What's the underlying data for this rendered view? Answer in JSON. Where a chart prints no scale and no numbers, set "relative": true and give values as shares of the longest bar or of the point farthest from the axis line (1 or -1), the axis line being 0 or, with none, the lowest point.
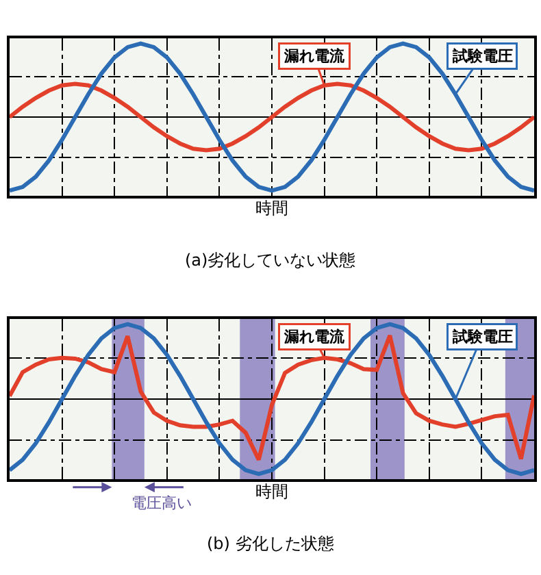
{
  "chart_data": [
    {
      "type": "line",
      "relative": true,
      "title": "(a)劣化していない状態",
      "xlabel": "時間",
      "grid": true,
      "tick_labels": false,
      "categories": [
        null,
        null,
        null,
        null,
        null,
        null,
        null,
        null,
        null,
        null,
        null,
        null,
        null,
        null,
        null,
        null,
        null,
        null,
        null,
        null,
        null,
        null,
        null,
        null,
        null,
        null,
        null,
        null,
        null,
        null,
        null,
        null,
        null,
        null,
        null,
        null,
        null,
        null,
        null,
        null,
        null
      ],
      "series": [
        {
          "name": "漏れ電流",
          "color": "#e2402a",
          "values": [
            0,
            0.14,
            0.26,
            0.36,
            0.43,
            0.45,
            0.43,
            0.36,
            0.26,
            0.14,
            0,
            -0.14,
            -0.26,
            -0.36,
            -0.43,
            -0.45,
            -0.43,
            -0.36,
            -0.26,
            -0.14,
            0,
            0.14,
            0.26,
            0.36,
            0.43,
            0.45,
            0.43,
            0.36,
            0.26,
            0.14,
            0,
            -0.14,
            -0.26,
            -0.36,
            -0.43,
            -0.45,
            -0.43,
            -0.36,
            -0.26,
            -0.14,
            0
          ]
        },
        {
          "name": "試験電圧",
          "color": "#2b6cb4",
          "values": [
            -1,
            -0.95,
            -0.81,
            -0.59,
            -0.31,
            0,
            0.31,
            0.59,
            0.81,
            0.95,
            1,
            0.95,
            0.81,
            0.59,
            0.31,
            0,
            -0.31,
            -0.59,
            -0.81,
            -0.95,
            -1,
            -0.95,
            -0.81,
            -0.59,
            -0.31,
            0,
            0.31,
            0.59,
            0.81,
            0.95,
            1,
            0.95,
            0.81,
            0.59,
            0.31,
            0,
            -0.31,
            -0.59,
            -0.81,
            -0.95,
            -1
          ]
        }
      ]
    },
    {
      "type": "line",
      "relative": true,
      "title": "(b) 劣化した状態",
      "xlabel": "時間",
      "grid": true,
      "tick_labels": false,
      "categories": [
        null,
        null,
        null,
        null,
        null,
        null,
        null,
        null,
        null,
        null,
        null,
        null,
        null,
        null,
        null,
        null,
        null,
        null,
        null,
        null,
        null,
        null,
        null,
        null,
        null,
        null,
        null,
        null,
        null,
        null,
        null,
        null,
        null,
        null,
        null,
        null,
        null,
        null,
        null,
        null,
        null
      ],
      "annotations": [
        "電圧高い"
      ],
      "series": [
        {
          "name": "漏れ電流",
          "color": "#e2402a",
          "values": [
            0.04,
            0.36,
            0.46,
            0.53,
            0.55,
            0.54,
            0.49,
            0.4,
            0.36,
            0.84,
            0.1,
            -0.18,
            -0.29,
            -0.35,
            -0.37,
            -0.37,
            -0.34,
            -0.29,
            -0.45,
            -0.81,
            -0.08,
            0.35,
            0.46,
            0.52,
            0.55,
            0.53,
            0.48,
            0.4,
            0.39,
            0.85,
            0.08,
            -0.19,
            -0.29,
            -0.34,
            -0.37,
            -0.33,
            -0.28,
            -0.23,
            -0.21,
            -0.8,
            0.05
          ]
        },
        {
          "name": "試験電圧",
          "color": "#2b6cb4",
          "values": [
            -0.95,
            -0.81,
            -0.59,
            -0.31,
            0,
            0.31,
            0.59,
            0.81,
            0.95,
            1,
            0.95,
            0.81,
            0.59,
            0.31,
            0,
            -0.31,
            -0.59,
            -0.81,
            -0.95,
            -1,
            -0.95,
            -0.81,
            -0.59,
            -0.31,
            0,
            0.31,
            0.59,
            0.81,
            0.95,
            1,
            0.95,
            0.81,
            0.59,
            0.31,
            0,
            -0.31,
            -0.59,
            -0.81,
            -0.95,
            -1,
            -0.95
          ]
        }
      ]
    }
  ]
}
